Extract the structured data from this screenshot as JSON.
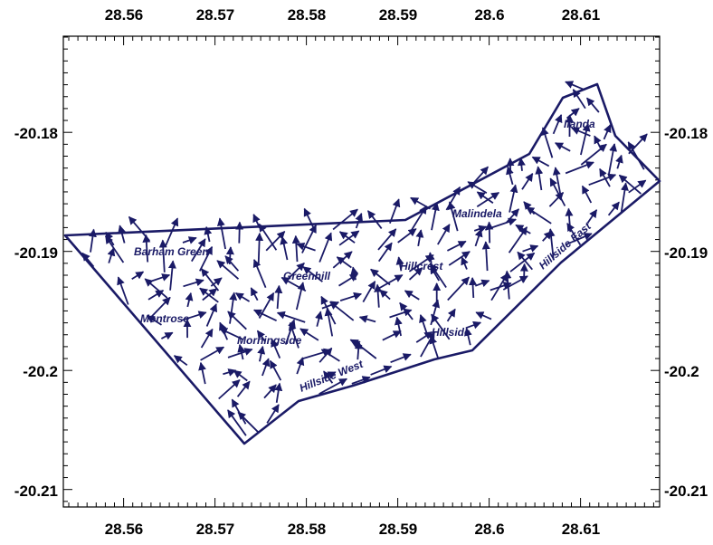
{
  "map": {
    "x_ticks": [
      "28.56",
      "28.57",
      "28.58",
      "28.59",
      "28.6",
      "28.61"
    ],
    "y_ticks": [
      "-20.18",
      "-20.19",
      "-20.2",
      "-20.21"
    ],
    "place_labels": [
      "Ilanda",
      "Malindela",
      "Barham Green",
      "Greenhill",
      "Hillcrest",
      "Hillside East",
      "Montrose",
      "Morningside",
      "Hillside",
      "Hillside West"
    ]
  },
  "colors": {
    "boundary": "#1a1a66",
    "arrow": "#1a1a66",
    "label": "#1a1a66",
    "frame": "#000000"
  }
}
